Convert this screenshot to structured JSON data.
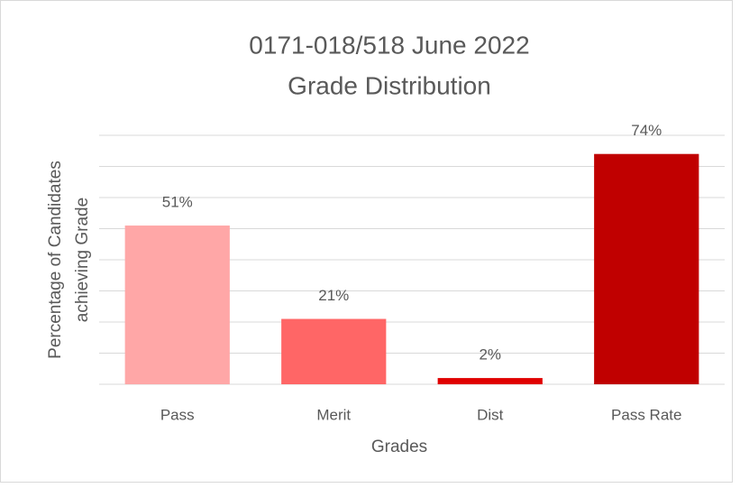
{
  "chart_data": {
    "type": "bar",
    "title": [
      "0171-018/518 June 2022",
      "Grade Distribution"
    ],
    "x_label": "Grades",
    "y_label": [
      "Percentage of Candidates",
      "achieving Grade"
    ],
    "categories": [
      "Pass",
      "Merit",
      "Dist",
      "Pass Rate"
    ],
    "values": [
      51,
      21,
      2,
      74
    ],
    "value_labels": [
      "51%",
      "21%",
      "2%",
      "74%"
    ],
    "colors": [
      "#ffa7a7",
      "#ff6666",
      "#e00000",
      "#c00000"
    ],
    "ylim": [
      0,
      80
    ],
    "yticks": [
      0,
      10,
      20,
      30,
      40,
      50,
      60,
      70,
      80
    ],
    "grid": true
  }
}
